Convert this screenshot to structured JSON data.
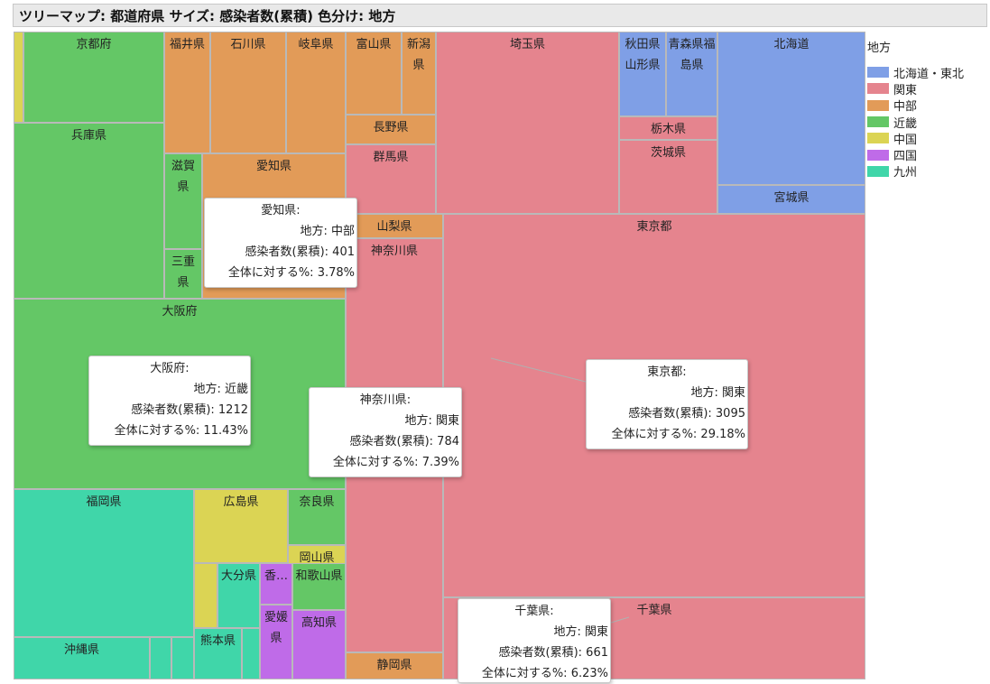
{
  "chart_data": {
    "type": "treemap",
    "title": "ツリーマップ: 都道府県 サイズ: 感染者数(累積) 色分け: 地方",
    "legend": {
      "title": "地方",
      "placement": "right",
      "items": [
        {
          "name": "北海道・東北",
          "color": "#7f9fe6"
        },
        {
          "name": "関東",
          "color": "#e5848e"
        },
        {
          "name": "中部",
          "color": "#e29b58"
        },
        {
          "name": "近畿",
          "color": "#64c766"
        },
        {
          "name": "中国",
          "color": "#dbd454"
        },
        {
          "name": "四国",
          "color": "#bf6be8"
        },
        {
          "name": "九州",
          "color": "#40d6a9"
        }
      ]
    },
    "tiles": [
      {
        "name": "京都府",
        "region": "近畿"
      },
      {
        "name": "",
        "region": "中国"
      },
      {
        "name": "兵庫県",
        "region": "近畿"
      },
      {
        "name": "福井県",
        "region": "中部"
      },
      {
        "name": "石川県",
        "region": "中部"
      },
      {
        "name": "岐阜県",
        "region": "中部"
      },
      {
        "name": "滋賀県",
        "region": "近畿"
      },
      {
        "name": "三重県",
        "region": "近畿"
      },
      {
        "name": "愛知県",
        "region": "中部",
        "value": 401
      },
      {
        "name": "大阪府",
        "region": "近畿",
        "value": 1212
      },
      {
        "name": "福岡県",
        "region": "九州"
      },
      {
        "name": "沖縄県",
        "region": "九州"
      },
      {
        "name": "",
        "region": "九州"
      },
      {
        "name": "",
        "region": "九州"
      },
      {
        "name": "広島県",
        "region": "中国"
      },
      {
        "name": "奈良県",
        "region": "近畿"
      },
      {
        "name": "岡山県",
        "region": "中国"
      },
      {
        "name": "",
        "region": "中国"
      },
      {
        "name": "大分県",
        "region": "九州"
      },
      {
        "name": "熊本県",
        "region": "九州"
      },
      {
        "name": "",
        "region": "九州"
      },
      {
        "name": "香…",
        "region": "四国"
      },
      {
        "name": "和歌山県",
        "region": "近畿"
      },
      {
        "name": "愛媛県",
        "region": "四国"
      },
      {
        "name": "高知県",
        "region": "四国"
      },
      {
        "name": "富山県",
        "region": "中部"
      },
      {
        "name": "新潟県",
        "region": "中部"
      },
      {
        "name": "長野県",
        "region": "中部"
      },
      {
        "name": "群馬県",
        "region": "関東"
      },
      {
        "name": "山梨県",
        "region": "中部"
      },
      {
        "name": "神奈川県",
        "region": "関東",
        "value": 784
      },
      {
        "name": "静岡県",
        "region": "中部"
      },
      {
        "name": "埼玉県",
        "region": "関東"
      },
      {
        "name": "秋田県山形県",
        "region": "北海道・東北"
      },
      {
        "name": "青森県福島県",
        "region": "北海道・東北"
      },
      {
        "name": "栃木県",
        "region": "関東"
      },
      {
        "name": "茨城県",
        "region": "関東"
      },
      {
        "name": "北海道",
        "region": "北海道・東北"
      },
      {
        "name": "宮城県",
        "region": "北海道・東北"
      },
      {
        "name": "東京都",
        "region": "関東",
        "value": 3095
      },
      {
        "name": "千葉県",
        "region": "関東",
        "value": 661
      }
    ],
    "tooltips": [
      {
        "name": "愛知県:",
        "region_label": "地方: 中部",
        "count_label": "感染者数(累積): 401",
        "pct_label": "全体に対する%: 3.78%",
        "pct": 3.78
      },
      {
        "name": "大阪府:",
        "region_label": "地方: 近畿",
        "count_label": "感染者数(累積): 1212",
        "pct_label": "全体に対する%: 11.43%",
        "pct": 11.43
      },
      {
        "name": "神奈川県:",
        "region_label": "地方: 関東",
        "count_label": "感染者数(累積): 784",
        "pct_label": "全体に対する%: 7.39%",
        "pct": 7.39
      },
      {
        "name": "東京都:",
        "region_label": "地方: 関東",
        "count_label": "感染者数(累積): 3095",
        "pct_label": "全体に対する%: 29.18%",
        "pct": 29.18
      },
      {
        "name": "千葉県:",
        "region_label": "地方: 関東",
        "count_label": "感染者数(累積): 661",
        "pct_label": "全体に対する%: 6.23%",
        "pct": 6.23
      }
    ]
  }
}
